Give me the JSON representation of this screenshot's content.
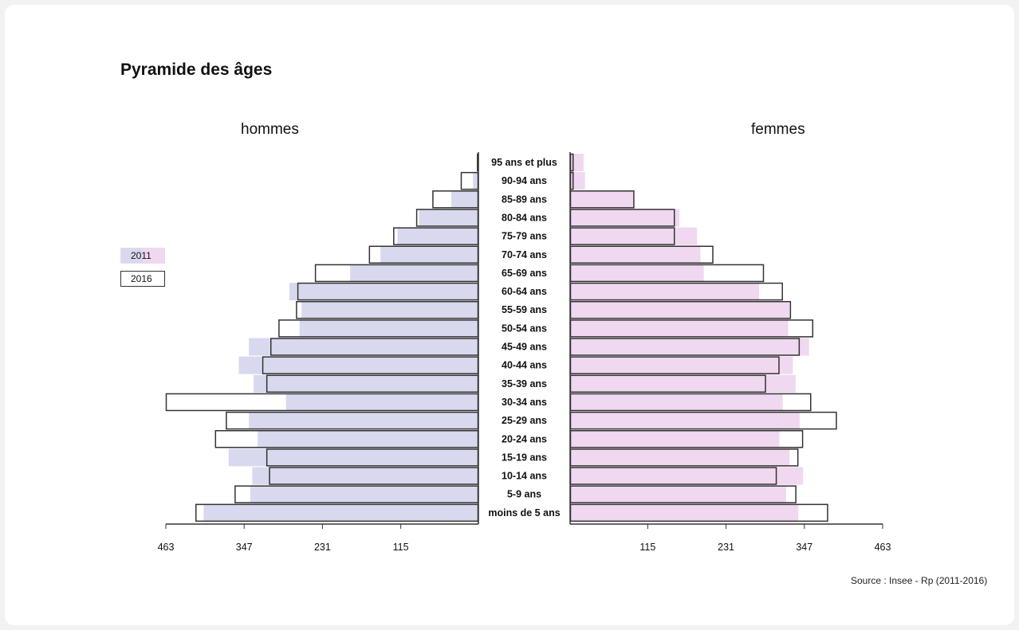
{
  "title": "Pyramide des âges",
  "source": "Source : Insee - Rp (2011-2016)",
  "chart_data": {
    "type": "bar",
    "orientation": "horizontal",
    "left_label": "hommes",
    "right_label": "femmes",
    "categories": [
      "95 ans et plus",
      "90-94 ans",
      "85-89 ans",
      "80-84 ans",
      "75-79 ans",
      "70-74 ans",
      "65-69 ans",
      "60-64 ans",
      "55-59 ans",
      "50-54 ans",
      "45-49 ans",
      "40-44 ans",
      "35-39 ans",
      "30-34 ans",
      "25-29 ans",
      "20-24 ans",
      "15-19 ans",
      "10-14 ans",
      "5-9 ans",
      "moins de 5 ans"
    ],
    "series": [
      {
        "name": "2011",
        "men": [
          2,
          8,
          40,
          88,
          120,
          145,
          190,
          280,
          262,
          265,
          340,
          355,
          333,
          285,
          340,
          327,
          370,
          335,
          338,
          407
        ],
        "women": [
          20,
          22,
          94,
          162,
          188,
          193,
          198,
          280,
          325,
          323,
          354,
          330,
          334,
          315,
          340,
          310,
          325,
          345,
          320,
          338
        ]
      },
      {
        "name": "2016",
        "men": [
          2,
          26,
          68,
          92,
          126,
          162,
          242,
          268,
          270,
          296,
          308,
          320,
          314,
          463,
          374,
          390,
          314,
          310,
          361,
          419
        ],
        "women": [
          5,
          5,
          95,
          155,
          155,
          212,
          287,
          315,
          327,
          360,
          340,
          310,
          290,
          357,
          395,
          345,
          338,
          306,
          335,
          382
        ]
      }
    ],
    "xticks": [
      463,
      347,
      231,
      115
    ],
    "xlim": [
      0,
      463
    ],
    "legend": "left",
    "colors": {
      "s2011_men": "#d8d9ef",
      "s2011_women": "#f0d8f0",
      "s2016_fill": "none",
      "s2016_stroke": "#333333"
    }
  }
}
